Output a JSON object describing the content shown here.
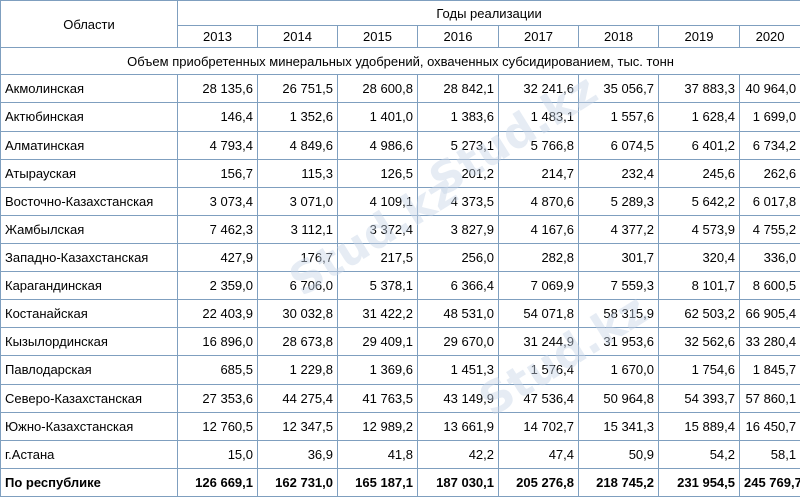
{
  "header": {
    "region_label": "Области",
    "years_label": "Годы реализации",
    "years": [
      "2013",
      "2014",
      "2015",
      "2016",
      "2017",
      "2018",
      "2019",
      "2020"
    ]
  },
  "section_title": "Объем приобретенных минеральных удобрений, охваченных субсидированием, тыс. тонн",
  "rows": [
    {
      "region": "Акмолинская",
      "values": [
        "28 135,6",
        "26 751,5",
        "28 600,8",
        "28 842,1",
        "32 241,6",
        "35 056,7",
        "37 883,3",
        "40 964,0"
      ]
    },
    {
      "region": "Актюбинская",
      "values": [
        "146,4",
        "1 352,6",
        "1 401,0",
        "1 383,6",
        "1 483,1",
        "1 557,6",
        "1 628,4",
        "1 699,0"
      ]
    },
    {
      "region": "Алматинская",
      "values": [
        "4 793,4",
        "4 849,6",
        "4 986,6",
        "5 273,1",
        "5 766,8",
        "6 074,5",
        "6 401,2",
        "6 734,2"
      ]
    },
    {
      "region": "Атырауская",
      "values": [
        "156,7",
        "115,3",
        "126,5",
        "201,2",
        "214,7",
        "232,4",
        "245,6",
        "262,6"
      ]
    },
    {
      "region": "Восточно-Казахстанская",
      "values": [
        "3 073,4",
        "3 071,0",
        "4 109,1",
        "4 373,5",
        "4 870,6",
        "5 289,3",
        "5 642,2",
        "6 017,8"
      ]
    },
    {
      "region": "Жамбылская",
      "values": [
        "7 462,3",
        "3 112,1",
        "3 372,4",
        "3 827,9",
        "4 167,6",
        "4 377,2",
        "4 573,9",
        "4 755,2"
      ]
    },
    {
      "region": "Западно-Казахстанская",
      "values": [
        "427,9",
        "176,7",
        "217,5",
        "256,0",
        "282,8",
        "301,7",
        "320,4",
        "336,0"
      ]
    },
    {
      "region": "Карагандинская",
      "values": [
        "2 359,0",
        "6 706,0",
        "5 378,1",
        "6 366,4",
        "7 069,9",
        "7 559,3",
        "8 101,7",
        "8 600,5"
      ]
    },
    {
      "region": "Костанайская",
      "values": [
        "22 403,9",
        "30 032,8",
        "31 422,2",
        "48 531,0",
        "54 071,8",
        "58 315,9",
        "62 503,2",
        "66 905,4"
      ]
    },
    {
      "region": "Кызылординская",
      "values": [
        "16 896,0",
        "28 673,8",
        "29 409,1",
        "29 670,0",
        "31 244,9",
        "31 953,6",
        "32 562,6",
        "33 280,4"
      ]
    },
    {
      "region": "Павлодарская",
      "values": [
        "685,5",
        "1 229,8",
        "1 369,6",
        "1 451,3",
        "1 576,4",
        "1 670,0",
        "1 754,6",
        "1 845,7"
      ]
    },
    {
      "region": "Северо-Казахстанская",
      "values": [
        "27 353,6",
        "44 275,4",
        "41 763,5",
        "43 149,9",
        "47 536,4",
        "50 964,8",
        "54 393,7",
        "57 860,1"
      ]
    },
    {
      "region": "Южно-Казахстанская",
      "values": [
        "12 760,5",
        "12 347,5",
        "12 989,2",
        "13 661,9",
        "14 702,7",
        "15 341,3",
        "15 889,4",
        "16 450,7"
      ]
    },
    {
      "region": "г.Астана",
      "values": [
        "15,0",
        "36,9",
        "41,8",
        "42,2",
        "47,4",
        "50,9",
        "54,2",
        "58,1"
      ]
    }
  ],
  "total": {
    "region": "По республике",
    "values": [
      "126 669,1",
      "162 731,0",
      "165 187,1",
      "187 030,1",
      "205 276,8",
      "218 745,2",
      "231 954,5",
      "245 769,7"
    ]
  },
  "watermark_text": "Stud.kz"
}
